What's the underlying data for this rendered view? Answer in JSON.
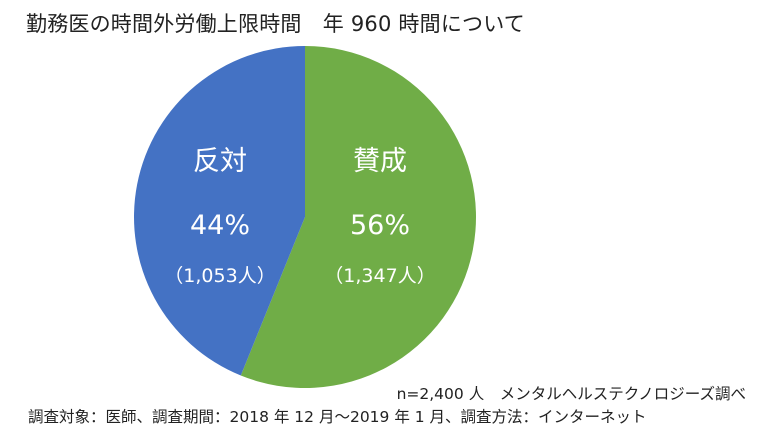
{
  "chart_data": {
    "type": "pie",
    "title": "勤務医の時間外労働上限時間　年 960 時間について",
    "slices": [
      {
        "label": "賛成",
        "percent": "56%",
        "count": "（1,347人）",
        "value": 1347,
        "color": "#70ad47"
      },
      {
        "label": "反対",
        "percent": "44%",
        "count": "（1,053人）",
        "value": 1053,
        "color": "#4472c4"
      }
    ],
    "notes": {
      "sample": "n=2,400 人　メンタルヘルステクノロジーズ調べ",
      "survey": "調査対象：医師、調査期間：2018 年 12 月～2019 年 1 月、調査方法：インターネット"
    }
  }
}
